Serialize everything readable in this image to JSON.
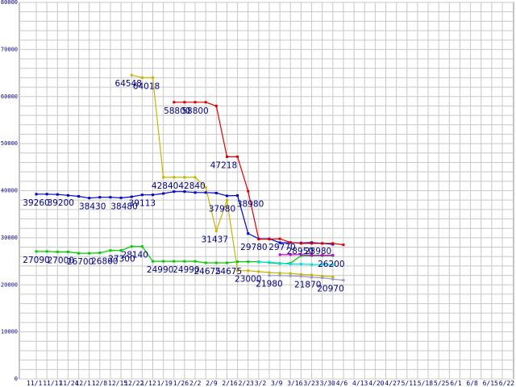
{
  "chart_data": {
    "type": "line",
    "grid": true,
    "legend": "none",
    "ylim": [
      0,
      80000
    ],
    "yticks": [
      0,
      10000,
      20000,
      30000,
      40000,
      50000,
      60000,
      70000,
      80000
    ],
    "yticks_text": [
      "0",
      "10000",
      "20000",
      "30000",
      "40000",
      "50000",
      "60000",
      "70000",
      "80000"
    ],
    "x_count": 45,
    "xticks": [
      {
        "i": 0,
        "label": "11/1"
      },
      {
        "i": 1,
        "label": "11/17"
      },
      {
        "i": 2,
        "label": "11/24"
      },
      {
        "i": 3,
        "label": "12/1"
      },
      {
        "i": 4,
        "label": "12/8"
      },
      {
        "i": 5,
        "label": "12/15"
      },
      {
        "i": 6,
        "label": "12/22"
      },
      {
        "i": 7,
        "label": "1/12"
      },
      {
        "i": 8,
        "label": "1/19"
      },
      {
        "i": 9,
        "label": "1/26"
      },
      {
        "i": 10,
        "label": "2/2"
      },
      {
        "i": 11,
        "label": "2/9"
      },
      {
        "i": 12,
        "label": "2/16"
      },
      {
        "i": 13,
        "label": "2/23"
      },
      {
        "i": 14,
        "label": "3/2"
      },
      {
        "i": 15,
        "label": "3/9"
      },
      {
        "i": 16,
        "label": "3/16"
      },
      {
        "i": 17,
        "label": "3/23"
      },
      {
        "i": 18,
        "label": "3/30"
      },
      {
        "i": 19,
        "label": "4/6"
      },
      {
        "i": 20,
        "label": "4/13"
      },
      {
        "i": 21,
        "label": "4/20"
      },
      {
        "i": 22,
        "label": "4/27"
      },
      {
        "i": 23,
        "label": "5/11"
      },
      {
        "i": 24,
        "label": "5/18"
      },
      {
        "i": 25,
        "label": "5/25"
      },
      {
        "i": 26,
        "label": "6/1"
      },
      {
        "i": 27,
        "label": "6/8"
      },
      {
        "i": 28,
        "label": "6/15"
      },
      {
        "i": 29,
        "label": "6/22"
      }
    ],
    "series": [
      {
        "color": "#0000cc",
        "start": 0,
        "values": [
          39260,
          39260,
          39200,
          39000,
          38800,
          38430,
          38600,
          38600,
          38480,
          38700,
          39113,
          39113,
          39400,
          39800,
          39800,
          39600,
          39600,
          39500,
          38900,
          38980,
          30900,
          29780,
          29770,
          28950,
          28950,
          28900,
          28980,
          28800,
          28600
        ]
      },
      {
        "color": "#00cc00",
        "start": 0,
        "values": [
          27090,
          27090,
          27000,
          27000,
          26700,
          26700,
          26800,
          27300,
          27300,
          28140,
          28140,
          24990,
          24990,
          24990,
          24990,
          24990,
          24675,
          24675,
          24675,
          24900,
          24900,
          24900,
          24700,
          24500,
          24600,
          26200,
          26200,
          26200,
          26200
        ]
      },
      {
        "color": "#c8b400",
        "start": 9,
        "values": [
          64548,
          64018,
          64018,
          42840,
          42840,
          42840,
          42840,
          40700,
          31437,
          37980,
          23000,
          23000,
          22800,
          22600,
          22500,
          22400,
          22200,
          22100,
          21870,
          21700
        ]
      },
      {
        "color": "#dd0000",
        "start": 13,
        "values": [
          58800,
          58800,
          58800,
          58800,
          58000,
          47218,
          47218,
          39900,
          29700,
          29700,
          29770,
          29000,
          28800,
          28800,
          28800,
          28800,
          28500
        ]
      },
      {
        "color": "#00e0e0",
        "start": 21,
        "values": [
          24800,
          24800,
          24600,
          24400,
          24400,
          24300,
          24300,
          24300
        ]
      },
      {
        "color": "#cc00cc",
        "start": 23,
        "values": [
          26400,
          26400,
          26400,
          26300,
          26300,
          26300
        ]
      },
      {
        "color": "#9999cc",
        "start": 22,
        "values": [
          21980,
          21980,
          21900,
          21800,
          21600,
          21500,
          21200,
          20970
        ]
      }
    ],
    "data_labels": [
      {
        "text": "39260",
        "x": 0,
        "y": 39260,
        "dx": 0,
        "dy": 14
      },
      {
        "text": "39200",
        "x": 2,
        "y": 39200,
        "dx": 4,
        "dy": 14
      },
      {
        "text": "38430",
        "x": 5,
        "y": 38430,
        "dx": 4,
        "dy": 14
      },
      {
        "text": "38480",
        "x": 8,
        "y": 38480,
        "dx": 4,
        "dy": 14
      },
      {
        "text": "39113",
        "x": 10,
        "y": 39113,
        "dx": 0,
        "dy": 14
      },
      {
        "text": "27090",
        "x": 0,
        "y": 27090,
        "dx": 0,
        "dy": 14
      },
      {
        "text": "27000",
        "x": 2,
        "y": 27000,
        "dx": 4,
        "dy": 14
      },
      {
        "text": "26700",
        "x": 4,
        "y": 26700,
        "dx": 2,
        "dy": 14
      },
      {
        "text": "26800",
        "x": 6,
        "y": 26800,
        "dx": 6,
        "dy": 14
      },
      {
        "text": "27300",
        "x": 7,
        "y": 27300,
        "dx": 14,
        "dy": 14
      },
      {
        "text": "28140",
        "x": 9,
        "y": 28140,
        "dx": 4,
        "dy": 14
      },
      {
        "text": "24990",
        "x": 12,
        "y": 24990,
        "dx": -4,
        "dy": 14
      },
      {
        "text": "24990",
        "x": 14,
        "y": 24990,
        "dx": 2,
        "dy": 14
      },
      {
        "text": "24675",
        "x": 16,
        "y": 24675,
        "dx": 2,
        "dy": 14
      },
      {
        "text": "24675",
        "x": 18,
        "y": 24675,
        "dx": 2,
        "dy": 14
      },
      {
        "text": "64548",
        "x": 9,
        "y": 64548,
        "dx": -4,
        "dy": 14
      },
      {
        "text": "64018",
        "x": 11,
        "y": 64018,
        "dx": -8,
        "dy": 14
      },
      {
        "text": "42840",
        "x": 12,
        "y": 42840,
        "dx": 2,
        "dy": 14
      },
      {
        "text": "42840",
        "x": 15,
        "y": 42840,
        "dx": -4,
        "dy": 14
      },
      {
        "text": "58800",
        "x": 13,
        "y": 58800,
        "dx": 4,
        "dy": 14
      },
      {
        "text": "58800",
        "x": 15,
        "y": 58800,
        "dx": 0,
        "dy": 14
      },
      {
        "text": "47218",
        "x": 18,
        "y": 47218,
        "dx": -4,
        "dy": 14
      },
      {
        "text": "37980",
        "x": 18,
        "y": 37980,
        "dx": -6,
        "dy": 14
      },
      {
        "text": "38980",
        "x": 19,
        "y": 38980,
        "dx": 16,
        "dy": 14
      },
      {
        "text": "31437",
        "x": 17,
        "y": 31437,
        "dx": -2,
        "dy": 14
      },
      {
        "text": "29780",
        "x": 21,
        "y": 29780,
        "dx": -6,
        "dy": 14
      },
      {
        "text": "29770",
        "x": 22,
        "y": 29770,
        "dx": 16,
        "dy": 14
      },
      {
        "text": "23000",
        "x": 20,
        "y": 23000,
        "dx": 0,
        "dy": 14
      },
      {
        "text": "21980",
        "x": 22,
        "y": 21980,
        "dx": 0,
        "dy": 14
      },
      {
        "text": "28950",
        "x": 24,
        "y": 28950,
        "dx": 12,
        "dy": 14
      },
      {
        "text": "28980",
        "x": 26,
        "y": 28980,
        "dx": 8,
        "dy": 14
      },
      {
        "text": "21870",
        "x": 27,
        "y": 21870,
        "dx": -18,
        "dy": 14
      },
      {
        "text": "26200",
        "x": 28,
        "y": 26200,
        "dx": -2,
        "dy": 14
      },
      {
        "text": "20970",
        "x": 29,
        "y": 20970,
        "dx": -16,
        "dy": 14
      }
    ]
  }
}
